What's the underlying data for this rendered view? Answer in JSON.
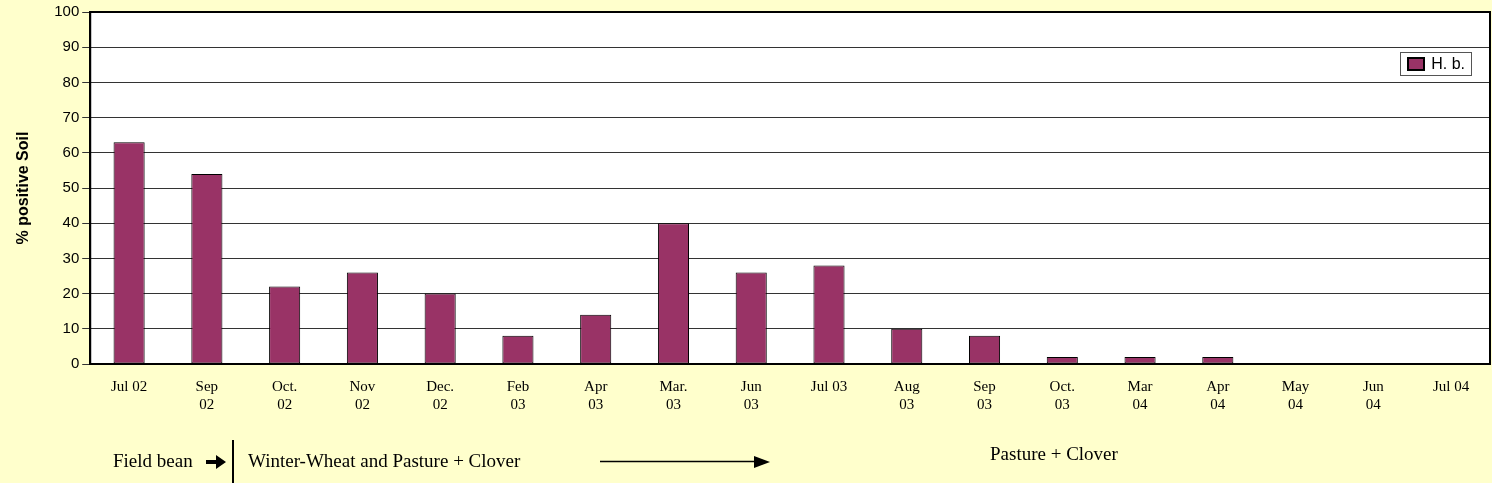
{
  "chart_data": {
    "type": "bar",
    "ylabel": "% positive Soil",
    "categories": [
      "Jul 02",
      "Sep\n02",
      "Oct.\n02",
      "Nov\n02",
      "Dec.\n02",
      "Feb\n03",
      "Apr\n03",
      "Mar.\n03",
      "Jun\n03",
      "Jul 03",
      "Aug\n03",
      "Sep\n03",
      "Oct.\n03",
      "Mar\n04",
      "Apr\n04",
      "May\n04",
      "Jun\n04",
      "Jul 04"
    ],
    "series": [
      {
        "name": "H. b.",
        "color": "#993366",
        "values": [
          63,
          54,
          22,
          26,
          20,
          8,
          14,
          40,
          26,
          28,
          10,
          8,
          2,
          2,
          2,
          0,
          0,
          0
        ]
      }
    ],
    "ylim": [
      0,
      100
    ],
    "yticks": [
      0,
      10,
      20,
      30,
      40,
      50,
      60,
      70,
      80,
      90,
      100
    ],
    "grid": "y",
    "legend": "top right",
    "annotations": [
      "Field bean",
      "Winter-Wheat and Pasture + Clover",
      "Pasture + Clover"
    ]
  }
}
